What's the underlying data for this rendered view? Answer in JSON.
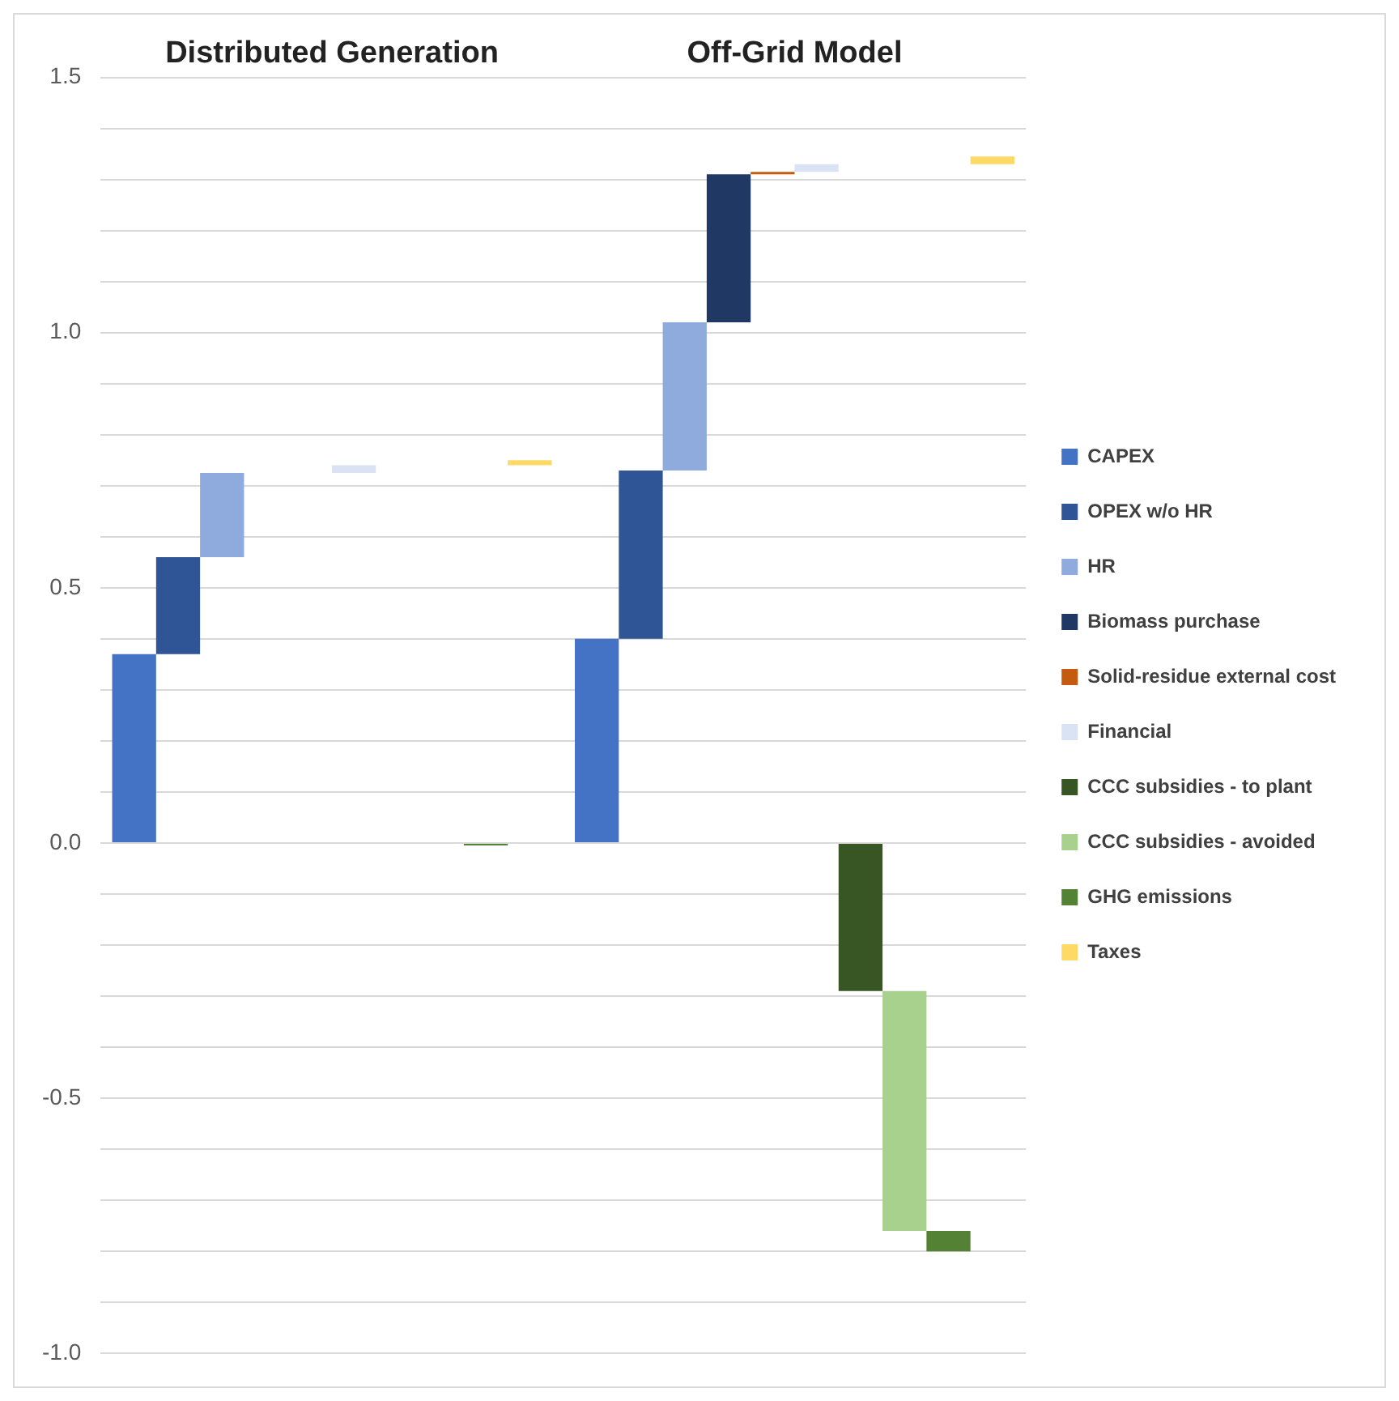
{
  "chart_data": {
    "type": "bar",
    "categories": [
      "Distributed Generation",
      "Off-Grid Model"
    ],
    "series": [
      {
        "name": "CAPEX",
        "color": "#4472c4",
        "values": [
          0.37,
          0.4
        ],
        "base": [
          0,
          0
        ]
      },
      {
        "name": "OPEX w/o HR",
        "color": "#2f5597",
        "values": [
          0.19,
          0.33
        ],
        "base": [
          0.37,
          0.4
        ]
      },
      {
        "name": "HR",
        "color": "#8faadc",
        "values": [
          0.165,
          0.29
        ],
        "base": [
          0.56,
          0.73
        ]
      },
      {
        "name": "Biomass purchase",
        "color": "#1f3864",
        "values": [
          null,
          0.29
        ],
        "base": [
          null,
          1.02
        ]
      },
      {
        "name": "Solid-residue external cost",
        "color": "#c55a11",
        "values": [
          null,
          0.005
        ],
        "base": [
          null,
          1.31
        ]
      },
      {
        "name": "Financial",
        "color": "#dae3f3",
        "values": [
          0.015,
          0.015
        ],
        "base": [
          0.725,
          1.315
        ]
      },
      {
        "name": "CCC subsidies - to plant",
        "color": "#375623",
        "values": [
          null,
          -0.29
        ],
        "base": [
          null,
          0
        ]
      },
      {
        "name": "CCC subsidies - avoided",
        "color": "#a9d18e",
        "values": [
          null,
          -0.47
        ],
        "base": [
          null,
          -0.29
        ]
      },
      {
        "name": "GHG emissions",
        "color": "#548235",
        "values": [
          -0.005,
          -0.04
        ],
        "base": [
          0,
          -0.76
        ]
      },
      {
        "name": "Taxes",
        "color": "#ffd966",
        "values": [
          0.01,
          0.015
        ],
        "base": [
          0.74,
          1.33
        ]
      }
    ],
    "ylim": [
      -1,
      1.5
    ],
    "yticks": [
      {
        "value": -1,
        "label": "-1.0"
      },
      {
        "value": -0.9,
        "label": null
      },
      {
        "value": -0.8,
        "label": null
      },
      {
        "value": -0.7,
        "label": null
      },
      {
        "value": -0.6,
        "label": null
      },
      -0.5,
      {
        "value": -0.4,
        "label": null
      },
      {
        "value": -0.3,
        "label": null
      },
      {
        "value": -0.2,
        "label": null
      },
      {
        "value": -0.1,
        "label": null
      },
      {
        "value": 0,
        "label": "0.0"
      },
      {
        "value": 0.1,
        "label": null
      },
      {
        "value": 0.2,
        "label": null
      },
      {
        "value": 0.3,
        "label": null
      },
      {
        "value": 0.4,
        "label": null
      },
      0.5,
      {
        "value": 0.6,
        "label": null
      },
      {
        "value": 0.7,
        "label": null
      },
      {
        "value": 0.8,
        "label": null
      },
      {
        "value": 0.9,
        "label": null
      },
      {
        "value": 1,
        "label": "1.0"
      },
      {
        "value": 1.1,
        "label": null
      },
      {
        "value": 1.2,
        "label": null
      },
      {
        "value": 1.3,
        "label": null
      },
      {
        "value": 1.4,
        "label": null
      },
      {
        "value": 1.5,
        "label": "1.5"
      }
    ],
    "grid": "y",
    "legend": "right"
  }
}
